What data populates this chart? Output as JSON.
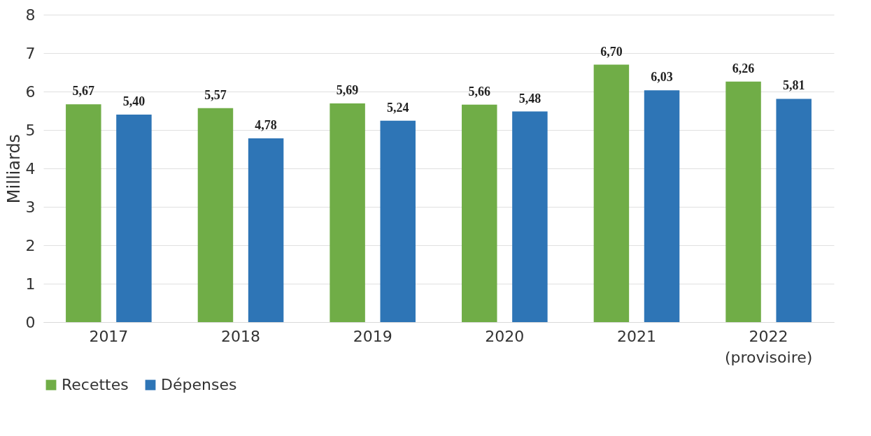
{
  "chart_data": {
    "type": "bar",
    "ylabel": "Milliards",
    "categories": [
      "2017",
      "2018",
      "2019",
      "2020",
      "2021",
      "2022 (provisoire)"
    ],
    "series": [
      {
        "name": "Recettes",
        "color": "#70ad47",
        "values": [
          5.67,
          5.57,
          5.69,
          5.66,
          6.7,
          6.26
        ],
        "value_labels": [
          "5,67",
          "5,57",
          "5,69",
          "5,66",
          "6,70",
          "6,26"
        ]
      },
      {
        "name": "Dépenses",
        "color": "#2e75b6",
        "values": [
          5.4,
          4.78,
          5.24,
          5.48,
          6.03,
          5.81
        ],
        "value_labels": [
          "5,40",
          "4,78",
          "5,24",
          "5,48",
          "6,03",
          "5,81"
        ]
      }
    ],
    "ylim": [
      0,
      8
    ],
    "yticks": [
      0,
      1,
      2,
      3,
      4,
      5,
      6,
      7,
      8
    ],
    "grid": "y",
    "legend": "bottom"
  }
}
